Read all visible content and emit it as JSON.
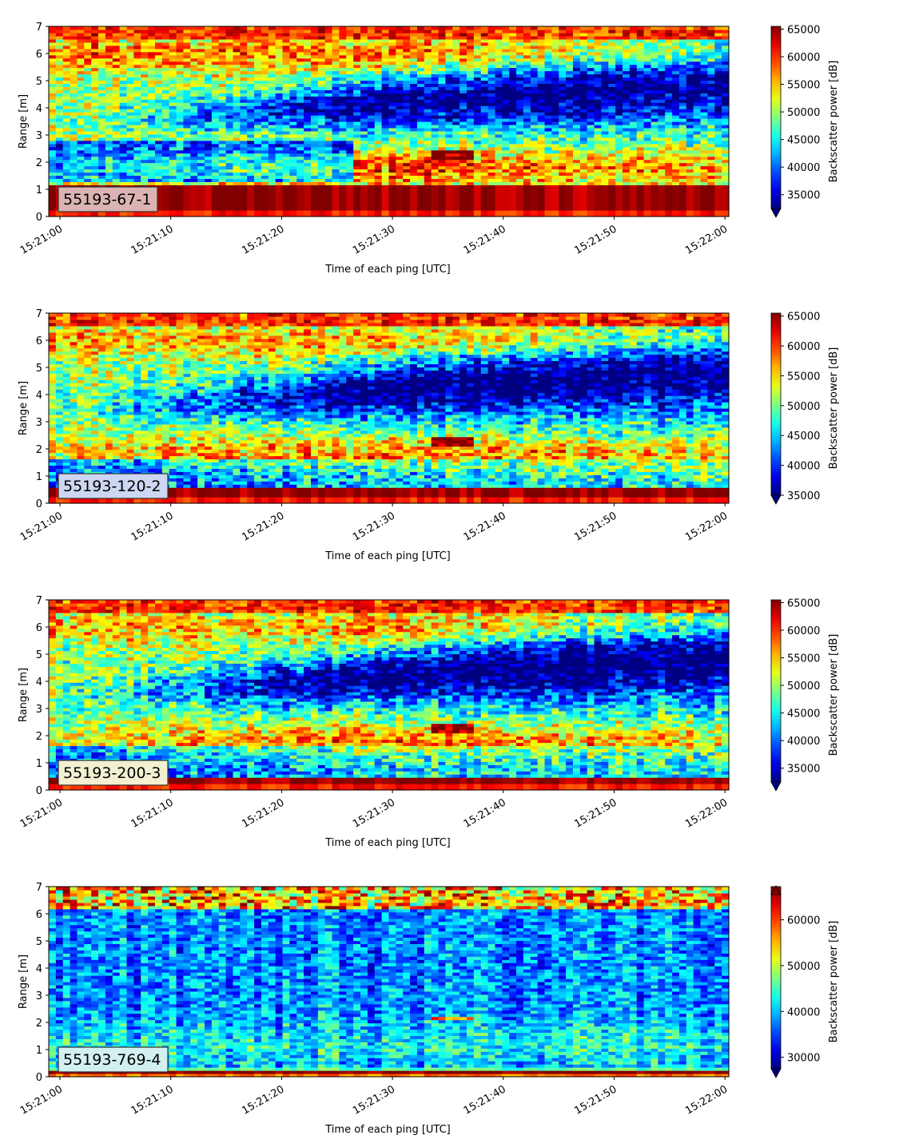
{
  "chart_data": [
    {
      "type": "heatmap",
      "label": "55193-67-1",
      "xlabel": "Time of each ping [UTC]",
      "ylabel": "Range [m]",
      "colorbar_label": "Backscatter power [dB]",
      "x_ticks": [
        "15:21:00",
        "15:21:10",
        "15:21:20",
        "15:21:30",
        "15:21:40",
        "15:21:50",
        "15:22:00"
      ],
      "y_ticks": [
        0,
        1,
        2,
        3,
        4,
        5,
        6,
        7
      ],
      "ylim": [
        0,
        7
      ],
      "colorbar_ticks": [
        35000,
        40000,
        45000,
        50000,
        55000,
        60000,
        65000
      ],
      "clim": [
        32500,
        65500
      ],
      "colorbar_extend": "min",
      "label_box_color": "#dbb3b3"
    },
    {
      "type": "heatmap",
      "label": "55193-120-2",
      "xlabel": "Time of each ping [UTC]",
      "ylabel": "Range [m]",
      "colorbar_label": "Backscatter power [dB]",
      "x_ticks": [
        "15:21:00",
        "15:21:10",
        "15:21:20",
        "15:21:30",
        "15:21:40",
        "15:21:50",
        "15:22:00"
      ],
      "y_ticks": [
        0,
        1,
        2,
        3,
        4,
        5,
        6,
        7
      ],
      "ylim": [
        0,
        7
      ],
      "colorbar_ticks": [
        35000,
        40000,
        45000,
        50000,
        55000,
        60000,
        65000
      ],
      "clim": [
        35000,
        65500
      ],
      "colorbar_extend": "min",
      "label_box_color": "#cdd6f2"
    },
    {
      "type": "heatmap",
      "label": "55193-200-3",
      "xlabel": "Time of each ping [UTC]",
      "ylabel": "Range [m]",
      "colorbar_label": "Backscatter power [dB]",
      "x_ticks": [
        "15:21:00",
        "15:21:10",
        "15:21:20",
        "15:21:30",
        "15:21:40",
        "15:21:50",
        "15:22:00"
      ],
      "y_ticks": [
        0,
        1,
        2,
        3,
        4,
        5,
        6,
        7
      ],
      "ylim": [
        0,
        7
      ],
      "colorbar_ticks": [
        35000,
        40000,
        45000,
        50000,
        55000,
        60000,
        65000
      ],
      "clim": [
        32500,
        65500
      ],
      "colorbar_extend": "min",
      "label_box_color": "#f3f0d2"
    },
    {
      "type": "heatmap",
      "label": "55193-769-4",
      "xlabel": "Time of each ping [UTC]",
      "ylabel": "Range [m]",
      "colorbar_label": "Backscatter power [dB]",
      "x_ticks": [
        "15:21:00",
        "15:21:10",
        "15:21:20",
        "15:21:30",
        "15:21:40",
        "15:21:50",
        "15:22:00"
      ],
      "y_ticks": [
        0,
        1,
        2,
        3,
        4,
        5,
        6,
        7
      ],
      "ylim": [
        0,
        7
      ],
      "colorbar_ticks": [
        30000,
        40000,
        50000,
        60000
      ],
      "clim": [
        27500,
        65500
      ],
      "colorbar_extend": "both",
      "label_box_color": "#d2f0f0"
    }
  ]
}
